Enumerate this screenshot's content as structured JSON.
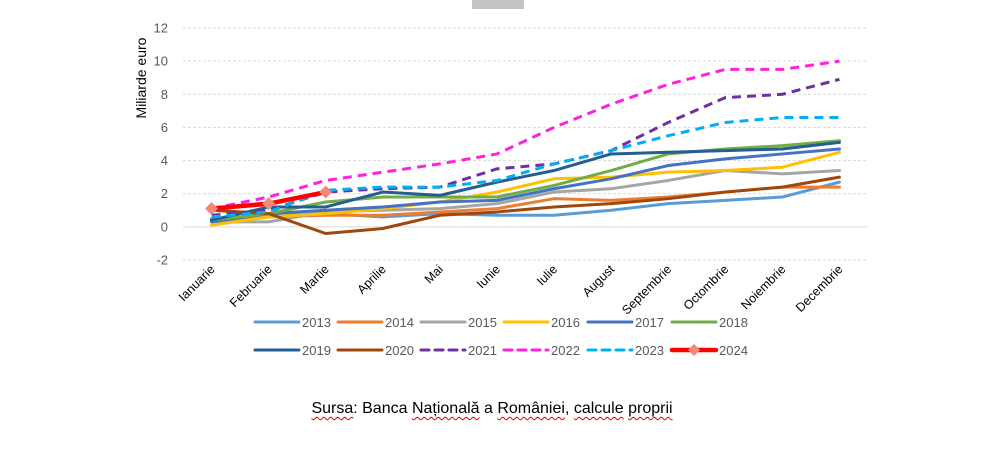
{
  "chart_data": {
    "type": "line",
    "title": "",
    "xlabel": "",
    "ylabel": "Miliarde euro",
    "ylim": [
      -2,
      12
    ],
    "yticks": [
      -2,
      0,
      2,
      4,
      6,
      8,
      10,
      12
    ],
    "grid": true,
    "legend_position": "bottom",
    "categories": [
      "Ianuarie",
      "Februarie",
      "Martie",
      "Aprilie",
      "Mai",
      "Iunie",
      "Iulie",
      "August",
      "Septembrie",
      "Octombrie",
      "Noiembrie",
      "Decembrie"
    ],
    "series": [
      {
        "name": "2013",
        "color": "#5b9bd5",
        "dash": "solid",
        "values": [
          0.5,
          0.7,
          0.8,
          0.6,
          0.8,
          0.7,
          0.7,
          1.0,
          1.4,
          1.6,
          1.8,
          2.7
        ]
      },
      {
        "name": "2014",
        "color": "#ed7d31",
        "dash": "solid",
        "values": [
          0.4,
          0.6,
          0.7,
          0.7,
          0.9,
          1.1,
          1.7,
          1.6,
          1.8,
          2.1,
          2.4,
          2.4
        ]
      },
      {
        "name": "2015",
        "color": "#a5a5a5",
        "dash": "solid",
        "values": [
          0.3,
          0.3,
          0.9,
          1.0,
          1.1,
          1.4,
          2.1,
          2.3,
          2.8,
          3.4,
          3.2,
          3.4
        ]
      },
      {
        "name": "2016",
        "color": "#ffc000",
        "dash": "solid",
        "values": [
          0.1,
          0.6,
          0.8,
          1.1,
          1.5,
          2.1,
          2.9,
          3.0,
          3.3,
          3.4,
          3.6,
          4.5
        ]
      },
      {
        "name": "2017",
        "color": "#4472c4",
        "dash": "solid",
        "values": [
          0.3,
          0.8,
          1.0,
          1.2,
          1.5,
          1.6,
          2.3,
          2.9,
          3.7,
          4.1,
          4.4,
          4.7
        ]
      },
      {
        "name": "2018",
        "color": "#70ad47",
        "dash": "solid",
        "values": [
          0.4,
          0.8,
          1.5,
          1.8,
          1.8,
          1.8,
          2.5,
          3.4,
          4.4,
          4.7,
          4.9,
          5.2
        ]
      },
      {
        "name": "2019",
        "color": "#255e91",
        "dash": "solid",
        "values": [
          0.4,
          1.2,
          1.2,
          2.1,
          1.9,
          2.7,
          3.4,
          4.4,
          4.5,
          4.6,
          4.7,
          5.1
        ]
      },
      {
        "name": "2020",
        "color": "#9e480e",
        "dash": "solid",
        "values": [
          1.0,
          0.8,
          -0.4,
          -0.1,
          0.7,
          0.9,
          1.2,
          1.4,
          1.7,
          2.1,
          2.4,
          3.0
        ]
      },
      {
        "name": "2021",
        "color": "#7030a0",
        "dash": "dashed",
        "values": [
          0.7,
          1.0,
          2.1,
          2.3,
          2.4,
          3.5,
          3.8,
          4.6,
          6.3,
          7.8,
          8.0,
          8.9
        ]
      },
      {
        "name": "2022",
        "color": "#ff22dd",
        "dash": "dashed",
        "values": [
          1.1,
          1.8,
          2.8,
          3.3,
          3.8,
          4.4,
          6.0,
          7.4,
          8.6,
          9.5,
          9.5,
          10.0
        ]
      },
      {
        "name": "2023",
        "color": "#00b0f0",
        "dash": "dashed",
        "values": [
          0.6,
          0.9,
          2.2,
          2.4,
          2.4,
          2.8,
          3.8,
          4.6,
          5.5,
          6.3,
          6.6,
          6.6
        ]
      },
      {
        "name": "2024",
        "color": "#ff0000",
        "dash": "solid",
        "marker": "diamond",
        "marker_color": "#f4877a",
        "values": [
          1.1,
          1.4,
          2.1
        ]
      }
    ]
  },
  "source_note": {
    "segments": [
      {
        "text": "Sursa",
        "flag": true
      },
      {
        "text": ": Banca ",
        "flag": false
      },
      {
        "text": "Națională",
        "flag": true
      },
      {
        "text": " a ",
        "flag": false
      },
      {
        "text": "României",
        "flag": true
      },
      {
        "text": ", ",
        "flag": false
      },
      {
        "text": "calcule",
        "flag": true
      },
      {
        "text": " ",
        "flag": false
      },
      {
        "text": "proprii",
        "flag": true
      }
    ]
  }
}
